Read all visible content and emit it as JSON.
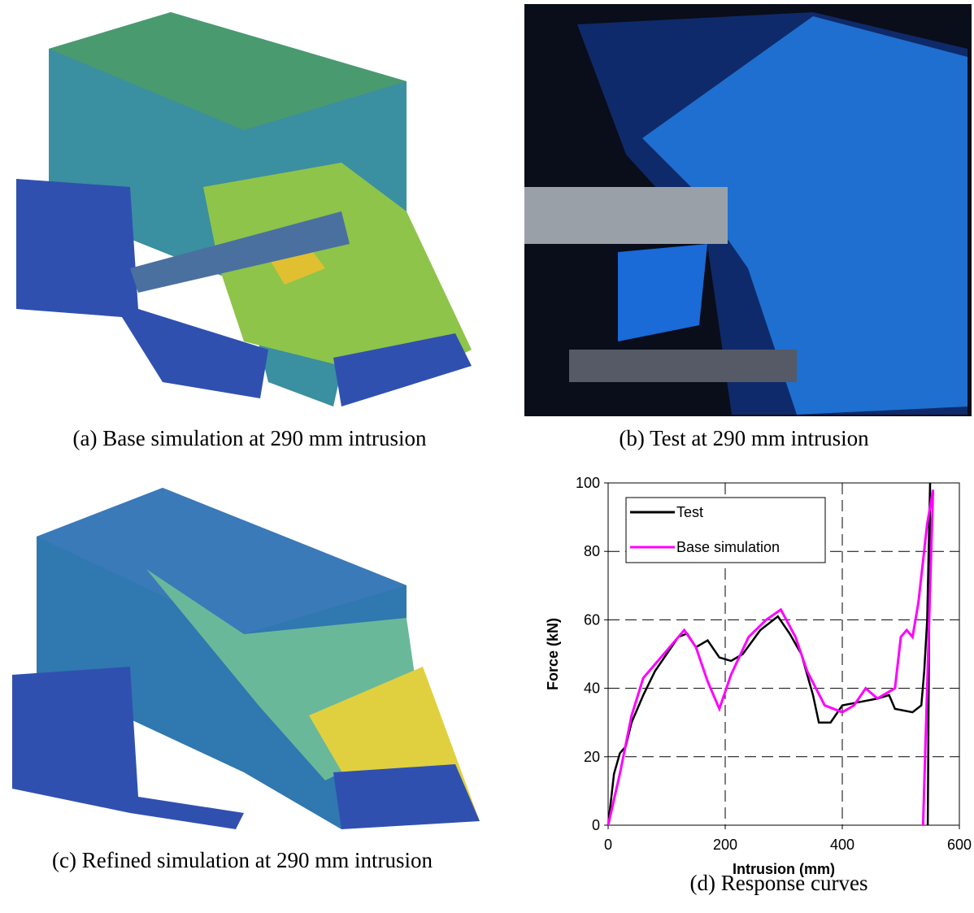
{
  "captions": [
    "(a) Base simulation at 290 mm intrusion",
    "(b) Test at 290 mm intrusion",
    "(c) Refined simulation at 290 mm intrusion",
    "(d) Response curves"
  ],
  "chart_data": {
    "type": "line",
    "xlabel": "Intrusion (mm)",
    "ylabel": "Force (kN)",
    "xlim": [
      0,
      600
    ],
    "ylim": [
      0,
      100
    ],
    "xticks": [
      0,
      200,
      400,
      600
    ],
    "yticks": [
      0,
      20,
      40,
      60,
      80,
      100
    ],
    "grid": true,
    "legend": "upper left",
    "series": [
      {
        "name": "Test",
        "color": "#000000",
        "x": [
          0,
          10,
          20,
          30,
          40,
          60,
          80,
          100,
          120,
          135,
          150,
          170,
          190,
          210,
          230,
          260,
          290,
          310,
          330,
          350,
          360,
          380,
          400,
          430,
          460,
          480,
          490,
          520,
          535,
          540,
          545,
          550,
          546
        ],
        "values": [
          0,
          15,
          21,
          23,
          30,
          38,
          45,
          50,
          55,
          56,
          52,
          54,
          49,
          48,
          50,
          57,
          61,
          56,
          50,
          38,
          30,
          30,
          35,
          36,
          37,
          38,
          34,
          33,
          35,
          45,
          60,
          100,
          0
        ]
      },
      {
        "name": "Base simulation",
        "color": "#ff00ff",
        "x": [
          0,
          20,
          40,
          60,
          80,
          100,
          130,
          150,
          170,
          190,
          210,
          240,
          270,
          295,
          320,
          340,
          370,
          400,
          420,
          440,
          460,
          490,
          500,
          510,
          520,
          530,
          545,
          555,
          538
        ],
        "values": [
          0,
          15,
          32,
          43,
          47,
          51,
          57,
          52,
          42,
          34,
          44,
          55,
          60,
          63,
          55,
          45,
          35,
          33,
          35,
          40,
          37,
          40,
          55,
          57,
          55,
          65,
          88,
          98,
          0
        ]
      }
    ]
  }
}
